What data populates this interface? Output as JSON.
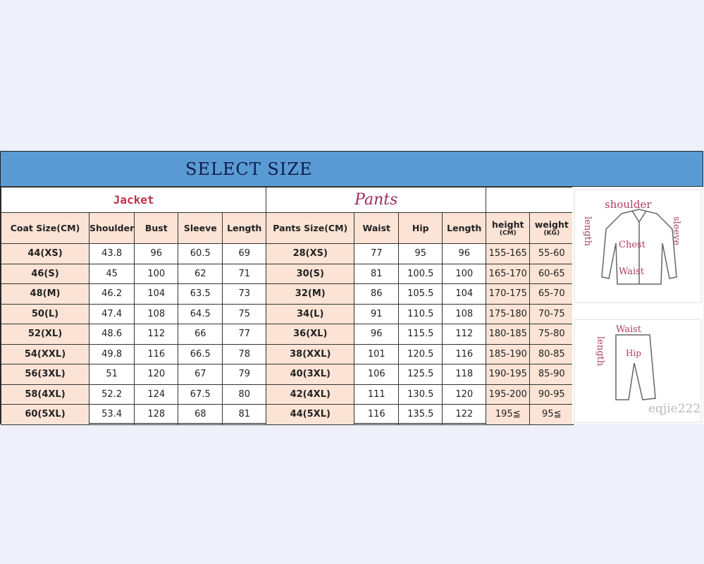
{
  "title": "SELECT SIZE",
  "jacket": {
    "label": "Jacket",
    "headers": [
      "Coat Size(CM)",
      "Shoulder",
      "Bust",
      "Sleeve",
      "Length"
    ]
  },
  "pants": {
    "label": "Pants",
    "headers": [
      "Pants Size(CM)",
      "Waist",
      "Hip",
      "Length"
    ]
  },
  "body": {
    "height_label": "height",
    "height_unit": "(CM)",
    "weight_label": "weight",
    "weight_unit": "(KG)"
  },
  "rows": [
    {
      "coat": "44(XS)",
      "shoulder": "43.8",
      "bust": "96",
      "sleeve": "60.5",
      "jlength": "69",
      "pants": "28(XS)",
      "waist": "77",
      "hip": "95",
      "plength": "96",
      "height": "155-165",
      "weight": "55-60"
    },
    {
      "coat": "46(S)",
      "shoulder": "45",
      "bust": "100",
      "sleeve": "62",
      "jlength": "71",
      "pants": "30(S)",
      "waist": "81",
      "hip": "100.5",
      "plength": "100",
      "height": "165-170",
      "weight": "60-65"
    },
    {
      "coat": "48(M)",
      "shoulder": "46.2",
      "bust": "104",
      "sleeve": "63.5",
      "jlength": "73",
      "pants": "32(M)",
      "waist": "86",
      "hip": "105.5",
      "plength": "104",
      "height": "170-175",
      "weight": "65-70"
    },
    {
      "coat": "50(L)",
      "shoulder": "47.4",
      "bust": "108",
      "sleeve": "64.5",
      "jlength": "75",
      "pants": "34(L)",
      "waist": "91",
      "hip": "110.5",
      "plength": "108",
      "height": "175-180",
      "weight": "70-75"
    },
    {
      "coat": "52(XL)",
      "shoulder": "48.6",
      "bust": "112",
      "sleeve": "66",
      "jlength": "77",
      "pants": "36(XL)",
      "waist": "96",
      "hip": "115.5",
      "plength": "112",
      "height": "180-185",
      "weight": "75-80"
    },
    {
      "coat": "54(XXL)",
      "shoulder": "49.8",
      "bust": "116",
      "sleeve": "66.5",
      "jlength": "78",
      "pants": "38(XXL)",
      "waist": "101",
      "hip": "120.5",
      "plength": "116",
      "height": "185-190",
      "weight": "80-85"
    },
    {
      "coat": "56(3XL)",
      "shoulder": "51",
      "bust": "120",
      "sleeve": "67",
      "jlength": "79",
      "pants": "40(3XL)",
      "waist": "106",
      "hip": "125.5",
      "plength": "118",
      "height": "190-195",
      "weight": "85-90"
    },
    {
      "coat": "58(4XL)",
      "shoulder": "52.2",
      "bust": "124",
      "sleeve": "67.5",
      "jlength": "80",
      "pants": "42(4XL)",
      "waist": "111",
      "hip": "130.5",
      "plength": "120",
      "height": "195-200",
      "weight": "90-95"
    },
    {
      "coat": "60(5XL)",
      "shoulder": "53.4",
      "bust": "128",
      "sleeve": "68",
      "jlength": "81",
      "pants": "44(5XL)",
      "waist": "116",
      "hip": "135.5",
      "plength": "122",
      "height": "195≦",
      "weight": "95≦"
    }
  ],
  "illustration": {
    "jacket_labels": {
      "shoulder": "shoulder",
      "length": "length",
      "sleeve": "sleeve",
      "chest": "Chest",
      "waist": "Waist"
    },
    "pants_labels": {
      "waist": "Waist",
      "length": "length",
      "hip": "Hip"
    },
    "watermark": "eqjie222"
  },
  "colors": {
    "banner": "#5b9bd5",
    "header_cell": "#fbe4d5",
    "jacket_label": "#c0304a",
    "pants_label": "#9a2d5a"
  }
}
